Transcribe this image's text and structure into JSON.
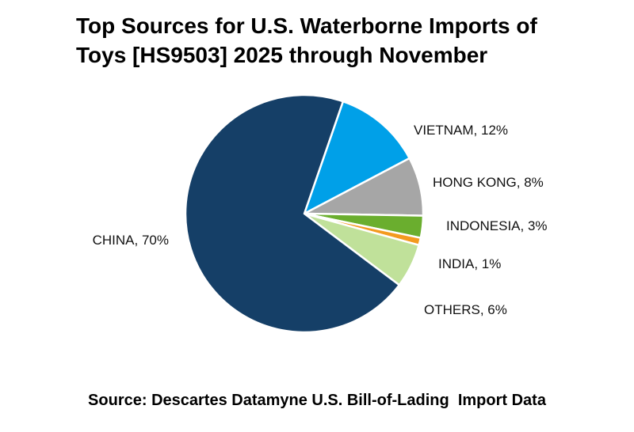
{
  "chart_data": {
    "type": "pie",
    "title_lines": [
      "Top Sources for U.S. Waterborne Imports of",
      "Toys [HS9503] 2025 through November"
    ],
    "source": "Source: Descartes Datamyne U.S. Bill-of-Lading  Import Data",
    "slices": [
      {
        "label": "VIETNAM, 12%",
        "category": "VIETNAM",
        "value": 12,
        "color": "#00A0E8"
      },
      {
        "label": "HONG KONG, 8%",
        "category": "HONG KONG",
        "value": 8,
        "color": "#A6A6A6"
      },
      {
        "label": "INDONESIA, 3%",
        "category": "INDONESIA",
        "value": 3,
        "color": "#6AAE2E"
      },
      {
        "label": "INDIA, 1%",
        "category": "INDIA",
        "value": 1,
        "color": "#F39A1F"
      },
      {
        "label": "OTHERS, 6%",
        "category": "OTHERS",
        "value": 6,
        "color": "#C0E19A"
      },
      {
        "label": "CHINA, 70%",
        "category": "CHINA",
        "value": 70,
        "color": "#153F67"
      }
    ]
  }
}
